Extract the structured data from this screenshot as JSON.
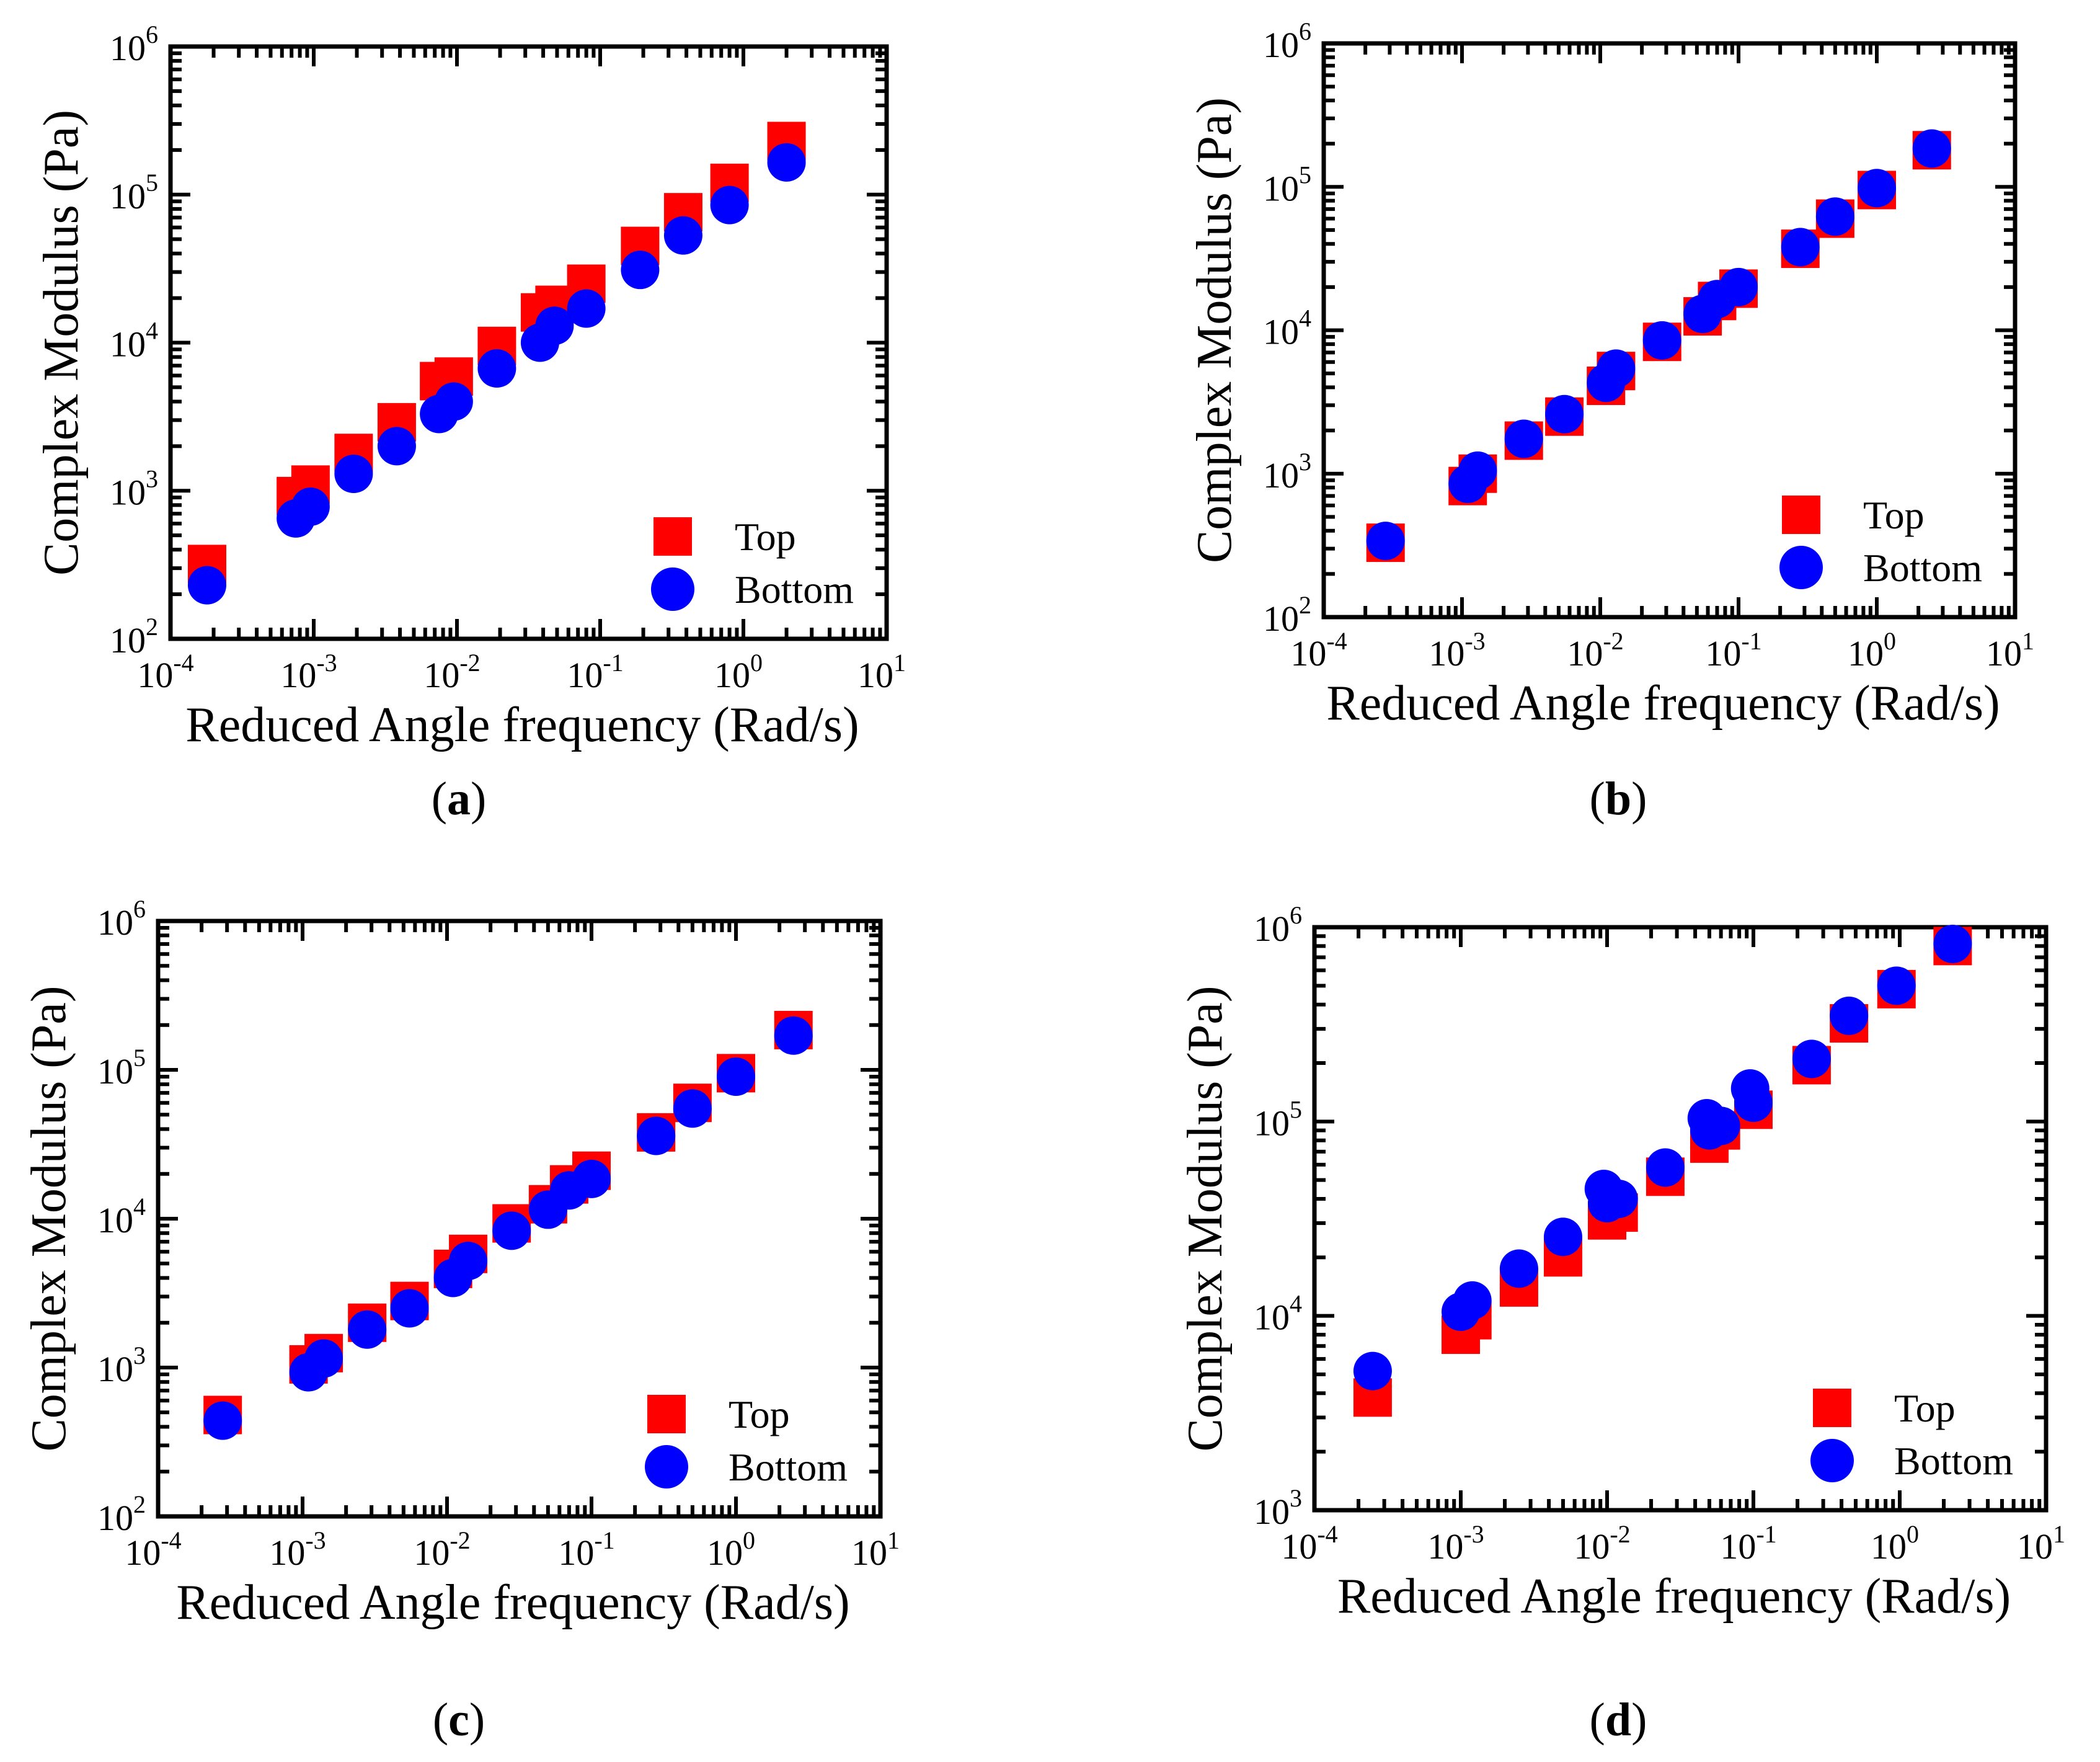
{
  "colors": {
    "top": "#ff0000",
    "bottom": "#0000ff",
    "axis": "#000000"
  },
  "chart_data": [
    {
      "type": "scatter",
      "panel_label": "a",
      "xlabel": "Reduced Angle frequency (Rad/s)",
      "ylabel": "Complex Modulus (Pa)",
      "x_scale": "log",
      "y_scale": "log",
      "xlim": [
        0.0001,
        10
      ],
      "ylim": [
        100,
        1000000
      ],
      "x_tick_exponents": [
        "-4",
        "-3",
        "-2",
        "-1",
        "0",
        "1"
      ],
      "y_tick_exponents": [
        "2",
        "3",
        "4",
        "5",
        "6"
      ],
      "grid": false,
      "legend_position": "bottom-right",
      "series": [
        {
          "name": "Top",
          "marker": "square",
          "color": "#ff0000",
          "x": [
            0.00018,
            0.00075,
            0.00095,
            0.0019,
            0.0038,
            0.0075,
            0.0095,
            0.019,
            0.038,
            0.048,
            0.08,
            0.19,
            0.38,
            0.8,
            2.0
          ],
          "y": [
            320,
            920,
            1100,
            1800,
            2900,
            5500,
            5900,
            9500,
            16000,
            18000,
            25000,
            45000,
            76000,
            120000,
            230000
          ]
        },
        {
          "name": "Bottom",
          "marker": "circle",
          "color": "#0000ff",
          "x": [
            0.00018,
            0.00075,
            0.00095,
            0.0019,
            0.0038,
            0.0075,
            0.0095,
            0.019,
            0.038,
            0.048,
            0.08,
            0.19,
            0.38,
            0.8,
            2.0
          ],
          "y": [
            230,
            650,
            780,
            1300,
            2000,
            3300,
            4000,
            6700,
            10000,
            13000,
            17000,
            31000,
            53000,
            85000,
            165000
          ]
        }
      ]
    },
    {
      "type": "scatter",
      "panel_label": "b",
      "xlabel": "Reduced Angle frequency (Rad/s)",
      "ylabel": "Complex Modulus (Pa)",
      "x_scale": "log",
      "y_scale": "log",
      "xlim": [
        0.0001,
        10
      ],
      "ylim": [
        100,
        1000000
      ],
      "x_tick_exponents": [
        "-4",
        "-3",
        "-2",
        "-1",
        "0",
        "1"
      ],
      "y_tick_exponents": [
        "2",
        "3",
        "4",
        "5",
        "6"
      ],
      "grid": false,
      "legend_position": "bottom-right",
      "series": [
        {
          "name": "Top",
          "marker": "square",
          "color": "#ff0000",
          "x": [
            0.00028,
            0.0011,
            0.0013,
            0.0028,
            0.0055,
            0.011,
            0.013,
            0.028,
            0.055,
            0.07,
            0.1,
            0.28,
            0.5,
            1.0,
            2.5
          ],
          "y": [
            330,
            820,
            1000,
            1700,
            2500,
            4100,
            5200,
            8300,
            12500,
            16000,
            19500,
            37000,
            60000,
            95000,
            180000
          ]
        },
        {
          "name": "Bottom",
          "marker": "circle",
          "color": "#0000ff",
          "x": [
            0.00028,
            0.0011,
            0.0013,
            0.0028,
            0.0055,
            0.011,
            0.013,
            0.028,
            0.055,
            0.07,
            0.1,
            0.28,
            0.5,
            1.0,
            2.5
          ],
          "y": [
            340,
            850,
            1050,
            1750,
            2600,
            4300,
            5400,
            8500,
            13000,
            16500,
            20000,
            38000,
            62000,
            98000,
            185000
          ]
        }
      ]
    },
    {
      "type": "scatter",
      "panel_label": "c",
      "xlabel": "Reduced Angle frequency (Rad/s)",
      "ylabel": "Complex Modulus (Pa)",
      "x_scale": "log",
      "y_scale": "log",
      "xlim": [
        0.0001,
        10
      ],
      "ylim": [
        100,
        1000000
      ],
      "x_tick_exponents": [
        "-4",
        "-3",
        "-2",
        "-1",
        "0",
        "1"
      ],
      "y_tick_exponents": [
        "2",
        "3",
        "4",
        "5",
        "6"
      ],
      "grid": false,
      "legend_position": "bottom-right",
      "series": [
        {
          "name": "Top",
          "marker": "square",
          "color": "#ff0000",
          "x": [
            0.00028,
            0.0011,
            0.0014,
            0.0028,
            0.0055,
            0.011,
            0.014,
            0.028,
            0.05,
            0.07,
            0.1,
            0.28,
            0.5,
            1.0,
            2.5
          ],
          "y": [
            480,
            1050,
            1250,
            2000,
            2800,
            4600,
            5800,
            9300,
            12500,
            17000,
            21000,
            38000,
            60000,
            95000,
            185000
          ]
        },
        {
          "name": "Bottom",
          "marker": "circle",
          "color": "#0000ff",
          "x": [
            0.00028,
            0.0011,
            0.0014,
            0.0028,
            0.0055,
            0.011,
            0.014,
            0.028,
            0.05,
            0.07,
            0.1,
            0.28,
            0.5,
            1.0,
            2.5
          ],
          "y": [
            440,
            930,
            1150,
            1800,
            2500,
            4000,
            5200,
            8300,
            11500,
            15500,
            18500,
            36000,
            55000,
            90000,
            170000
          ]
        }
      ]
    },
    {
      "type": "scatter",
      "panel_label": "d",
      "xlabel": "Reduced Angle frequency (Rad/s)",
      "ylabel": "Complex Modulus (Pa)",
      "x_scale": "log",
      "y_scale": "log",
      "xlim": [
        0.0001,
        10
      ],
      "ylim": [
        1000,
        1000000
      ],
      "x_tick_exponents": [
        "-4",
        "-3",
        "-2",
        "-1",
        "0",
        "1"
      ],
      "y_tick_exponents": [
        "3",
        "4",
        "5",
        "6"
      ],
      "grid": false,
      "legend_position": "bottom-right",
      "series": [
        {
          "name": "Top",
          "marker": "square",
          "color": "#ff0000",
          "x": [
            0.00025,
            0.001,
            0.0012,
            0.0025,
            0.005,
            0.01,
            0.012,
            0.025,
            0.05,
            0.06,
            0.1,
            0.25,
            0.45,
            0.95,
            2.3
          ],
          "y": [
            3800,
            8000,
            9500,
            14000,
            20000,
            31000,
            34000,
            52000,
            77000,
            90000,
            115000,
            195000,
            320000,
            480000,
            800000
          ]
        },
        {
          "name": "Bottom",
          "marker": "circle",
          "color": "#0000ff",
          "x": [
            0.00025,
            0.001,
            0.0012,
            0.0025,
            0.005,
            0.0095,
            0.01,
            0.012,
            0.025,
            0.048,
            0.05,
            0.06,
            0.095,
            0.1,
            0.25,
            0.45,
            0.95,
            2.3
          ],
          "y": [
            5200,
            10500,
            12000,
            17500,
            25500,
            45000,
            38000,
            40000,
            58000,
            104000,
            90000,
            95000,
            148000,
            125000,
            210000,
            350000,
            500000,
            820000
          ]
        }
      ]
    }
  ]
}
